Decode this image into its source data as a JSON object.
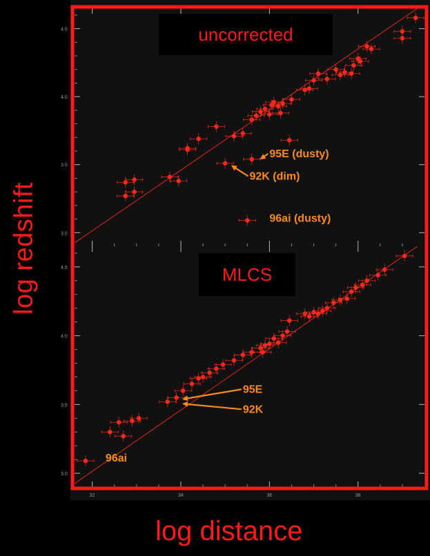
{
  "axis_labels": {
    "x": "log distance",
    "y": "log redshift"
  },
  "colors": {
    "frame": "#ff1a1a",
    "points": "#ff2a1a",
    "annotation": "#ff8a1a",
    "fit_line": "#c2241a",
    "background": "#000000"
  },
  "chart_data": [
    {
      "type": "scatter",
      "panel_label": "uncorrected",
      "xlim": [
        31.6,
        39.5
      ],
      "ylim": [
        2.9,
        4.65
      ],
      "xticks": [],
      "yticks": [
        "3.0",
        "3.5",
        "4.0",
        "4.5"
      ],
      "fit_line": [
        [
          31.6,
          2.925
        ],
        [
          39.5,
          4.685
        ]
      ],
      "points": [
        {
          "x": 32.75,
          "y": 3.37
        },
        {
          "x": 32.75,
          "y": 3.27
        },
        {
          "x": 32.95,
          "y": 3.39
        },
        {
          "x": 32.95,
          "y": 3.3
        },
        {
          "x": 33.75,
          "y": 3.41
        },
        {
          "x": 33.95,
          "y": 3.38
        },
        {
          "x": 34.15,
          "y": 3.62
        },
        {
          "x": 34.15,
          "y": 3.61
        },
        {
          "x": 34.4,
          "y": 3.69
        },
        {
          "x": 34.8,
          "y": 3.78
        },
        {
          "x": 35.0,
          "y": 3.51
        },
        {
          "x": 35.2,
          "y": 3.71
        },
        {
          "x": 35.4,
          "y": 3.73
        },
        {
          "x": 35.6,
          "y": 3.54
        },
        {
          "x": 35.5,
          "y": 3.09
        },
        {
          "x": 35.6,
          "y": 3.83
        },
        {
          "x": 35.7,
          "y": 3.86
        },
        {
          "x": 35.8,
          "y": 3.89
        },
        {
          "x": 35.9,
          "y": 3.91
        },
        {
          "x": 36.0,
          "y": 3.87
        },
        {
          "x": 36.05,
          "y": 3.94
        },
        {
          "x": 36.1,
          "y": 3.96
        },
        {
          "x": 36.2,
          "y": 3.93
        },
        {
          "x": 36.25,
          "y": 3.88
        },
        {
          "x": 36.3,
          "y": 3.95
        },
        {
          "x": 36.45,
          "y": 3.68
        },
        {
          "x": 36.5,
          "y": 3.98
        },
        {
          "x": 36.8,
          "y": 4.05
        },
        {
          "x": 36.9,
          "y": 4.06
        },
        {
          "x": 37.0,
          "y": 4.12
        },
        {
          "x": 37.1,
          "y": 4.17
        },
        {
          "x": 37.3,
          "y": 4.13
        },
        {
          "x": 37.5,
          "y": 4.2
        },
        {
          "x": 37.6,
          "y": 4.16
        },
        {
          "x": 37.7,
          "y": 4.18
        },
        {
          "x": 37.85,
          "y": 4.17
        },
        {
          "x": 37.9,
          "y": 4.23
        },
        {
          "x": 38.0,
          "y": 4.28
        },
        {
          "x": 38.05,
          "y": 4.26
        },
        {
          "x": 38.2,
          "y": 4.37
        },
        {
          "x": 38.3,
          "y": 4.35
        },
        {
          "x": 39.0,
          "y": 4.43
        },
        {
          "x": 39.0,
          "y": 4.48
        },
        {
          "x": 39.3,
          "y": 4.58
        }
      ],
      "annotations": [
        {
          "label": "95E (dusty)",
          "x": 36.0,
          "y": 3.555,
          "arrow_to": [
            35.75,
            3.545
          ]
        },
        {
          "label": "92K (dim)",
          "x": 35.55,
          "y": 3.39,
          "arrow_to": [
            35.1,
            3.49
          ]
        },
        {
          "label": "96ai (dusty)",
          "x": 36.0,
          "y": 3.08
        }
      ]
    },
    {
      "type": "scatter",
      "panel_label": "MLCS",
      "xlim": [
        31.6,
        39.5
      ],
      "ylim": [
        2.9,
        4.65
      ],
      "xticks": [
        "32",
        "34",
        "36",
        "38"
      ],
      "yticks": [
        "3.0",
        "3.5",
        "4.0",
        "4.5"
      ],
      "fit_line": [
        [
          31.6,
          2.925
        ],
        [
          39.5,
          4.685
        ]
      ],
      "points": [
        {
          "x": 31.85,
          "y": 3.09
        },
        {
          "x": 32.4,
          "y": 3.3
        },
        {
          "x": 32.6,
          "y": 3.37
        },
        {
          "x": 32.7,
          "y": 3.27
        },
        {
          "x": 32.9,
          "y": 3.38
        },
        {
          "x": 33.05,
          "y": 3.4
        },
        {
          "x": 33.7,
          "y": 3.52
        },
        {
          "x": 33.9,
          "y": 3.55
        },
        {
          "x": 34.05,
          "y": 3.6
        },
        {
          "x": 34.25,
          "y": 3.65
        },
        {
          "x": 34.4,
          "y": 3.69
        },
        {
          "x": 34.5,
          "y": 3.7
        },
        {
          "x": 34.65,
          "y": 3.73
        },
        {
          "x": 34.8,
          "y": 3.76
        },
        {
          "x": 34.95,
          "y": 3.79
        },
        {
          "x": 35.2,
          "y": 3.82
        },
        {
          "x": 35.4,
          "y": 3.86
        },
        {
          "x": 35.6,
          "y": 3.88
        },
        {
          "x": 35.8,
          "y": 3.91
        },
        {
          "x": 35.85,
          "y": 3.88
        },
        {
          "x": 35.9,
          "y": 3.93
        },
        {
          "x": 36.0,
          "y": 3.94
        },
        {
          "x": 36.1,
          "y": 3.98
        },
        {
          "x": 36.2,
          "y": 3.95
        },
        {
          "x": 36.3,
          "y": 4.0
        },
        {
          "x": 36.4,
          "y": 4.03
        },
        {
          "x": 36.45,
          "y": 4.11
        },
        {
          "x": 36.8,
          "y": 4.16
        },
        {
          "x": 36.9,
          "y": 4.14
        },
        {
          "x": 37.0,
          "y": 4.17
        },
        {
          "x": 37.1,
          "y": 4.16
        },
        {
          "x": 37.2,
          "y": 4.18
        },
        {
          "x": 37.3,
          "y": 4.2
        },
        {
          "x": 37.45,
          "y": 4.24
        },
        {
          "x": 37.6,
          "y": 4.26
        },
        {
          "x": 37.75,
          "y": 4.27
        },
        {
          "x": 37.85,
          "y": 4.32
        },
        {
          "x": 37.95,
          "y": 4.35
        },
        {
          "x": 38.1,
          "y": 4.37
        },
        {
          "x": 38.2,
          "y": 4.4
        },
        {
          "x": 38.45,
          "y": 4.44
        },
        {
          "x": 38.6,
          "y": 4.48
        },
        {
          "x": 39.05,
          "y": 4.58
        }
      ],
      "annotations": [
        {
          "label": "95E",
          "x": 35.4,
          "y": 3.585,
          "arrow_to": [
            34.0,
            3.54
          ]
        },
        {
          "label": "92K",
          "x": 35.4,
          "y": 3.44,
          "arrow_to": [
            34.0,
            3.505
          ]
        },
        {
          "label": "96ai",
          "x": 32.3,
          "y": 3.085
        }
      ]
    }
  ]
}
